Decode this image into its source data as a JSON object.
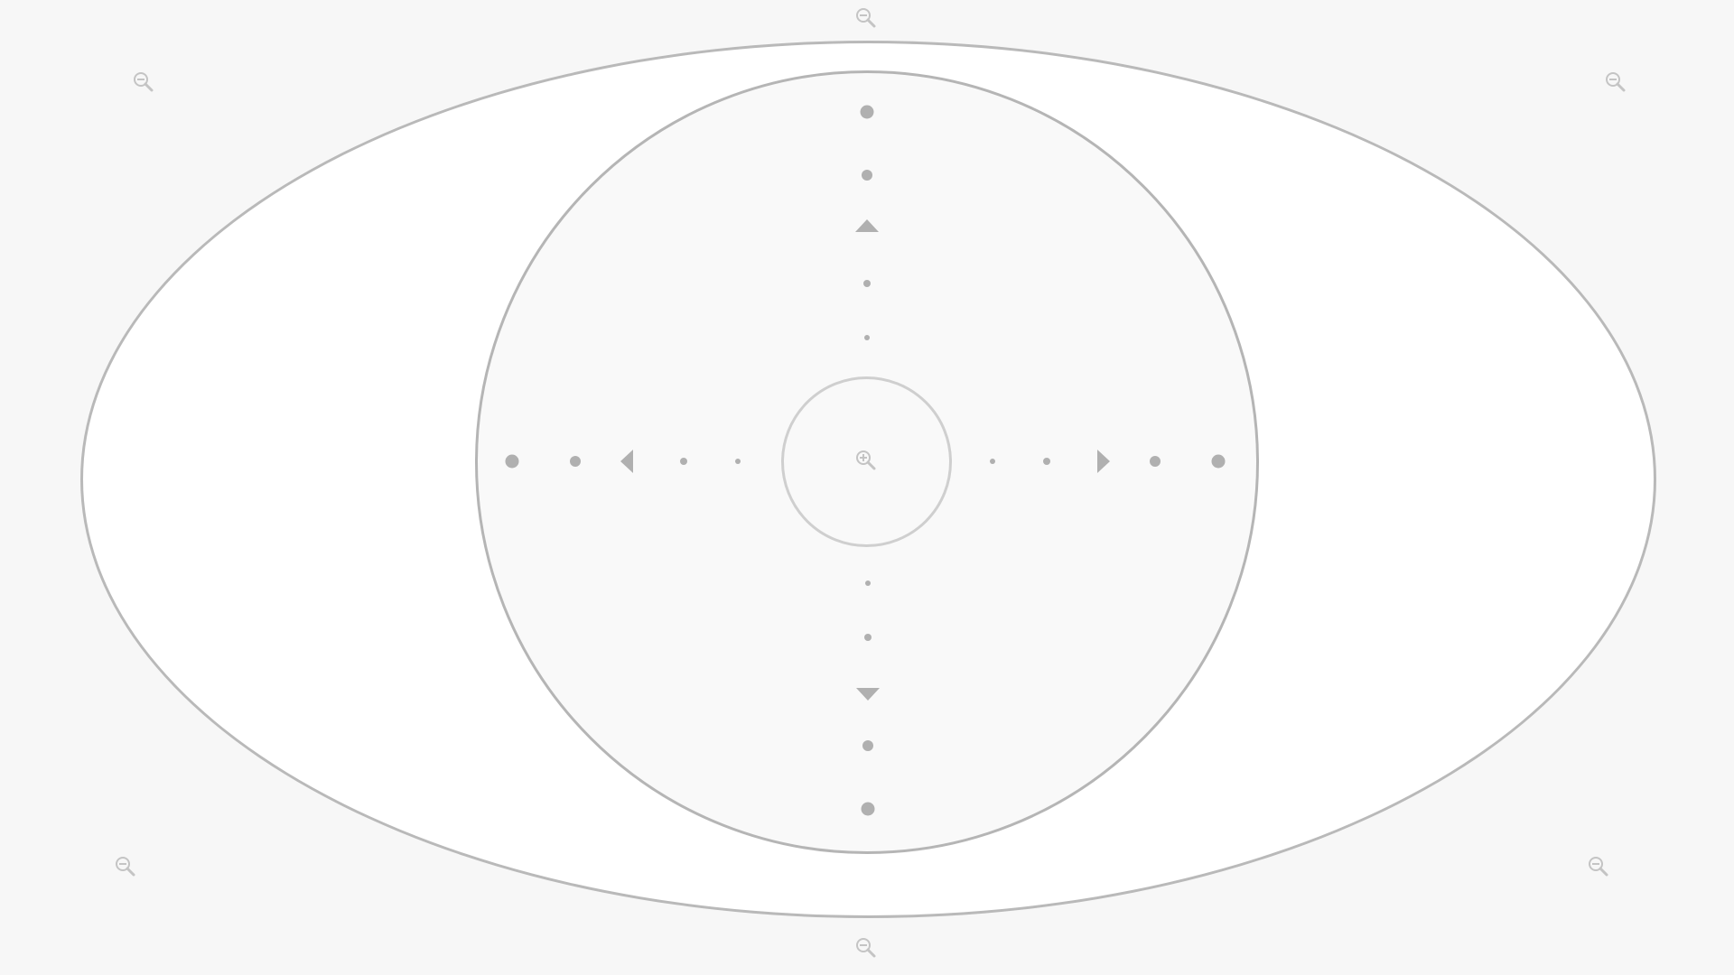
{
  "viewer": {
    "colors": {
      "background": "#f7f7f7",
      "outer_fill": "#ffffff",
      "outer_stroke": "#b9b9b9",
      "inner_fill": "#f9f9f9",
      "inner_stroke": "#b5b5b5",
      "center_stroke": "#cfcfcf",
      "dot_color": "#b0b0b0",
      "icon_color": "#c4c4c4"
    },
    "center_icon": "zoom-in-icon",
    "edge_icons": "zoom-out-icon",
    "arrows": [
      "arrow-up-icon",
      "arrow-down-icon",
      "arrow-left-icon",
      "arrow-right-icon"
    ]
  }
}
